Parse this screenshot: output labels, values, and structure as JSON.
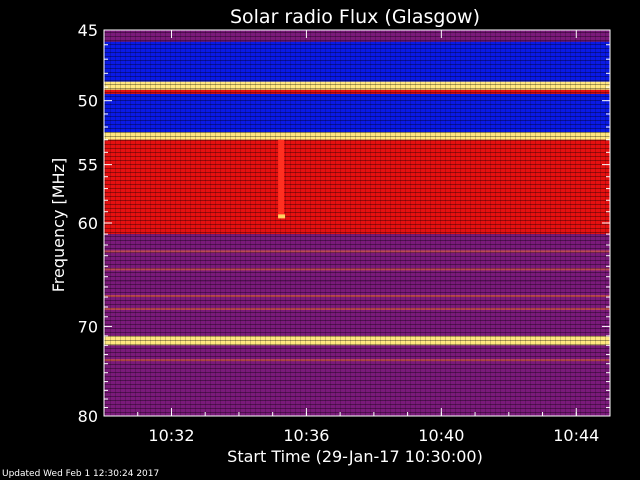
{
  "chart_data": {
    "type": "heatmap",
    "title": "Solar radio Flux (Glasgow)",
    "xlabel": "Start Time (29-Jan-17 10:30:00)",
    "ylabel": "Frequency [MHz]",
    "x_range": [
      "10:30:00",
      "10:45:00"
    ],
    "x_ticks": [
      "10:32",
      "10:36",
      "10:40",
      "10:44"
    ],
    "y_range": [
      45,
      80
    ],
    "y_scale": "log",
    "y_ticks": [
      45,
      50,
      55,
      60,
      70,
      80
    ],
    "grid": false,
    "legend": "none",
    "colors": {
      "low": "#0a1ae6",
      "mid": "#7a1a7a",
      "high": "#e61010",
      "peak": "#ffe680"
    },
    "bands": [
      {
        "from": 45.0,
        "to": 45.8,
        "level": "mid"
      },
      {
        "from": 45.8,
        "to": 48.6,
        "level": "low"
      },
      {
        "from": 48.6,
        "to": 49.2,
        "level": "peak"
      },
      {
        "from": 49.2,
        "to": 49.5,
        "level": "high"
      },
      {
        "from": 49.5,
        "to": 52.4,
        "level": "low"
      },
      {
        "from": 52.4,
        "to": 53.0,
        "level": "peak"
      },
      {
        "from": 53.0,
        "to": 61.0,
        "level": "high"
      },
      {
        "from": 61.0,
        "to": 65.5,
        "level": "mid"
      },
      {
        "from": 65.5,
        "to": 71.0,
        "level": "mid"
      },
      {
        "from": 71.0,
        "to": 72.0,
        "level": "peak"
      },
      {
        "from": 72.0,
        "to": 80.0,
        "level": "mid"
      }
    ],
    "spikes": [
      {
        "time": "10:35:15",
        "freq_from": 53.0,
        "freq_to": 59.5
      }
    ]
  },
  "footer": {
    "updated": "Updated Wed Feb  1 12:30:24 2017"
  }
}
